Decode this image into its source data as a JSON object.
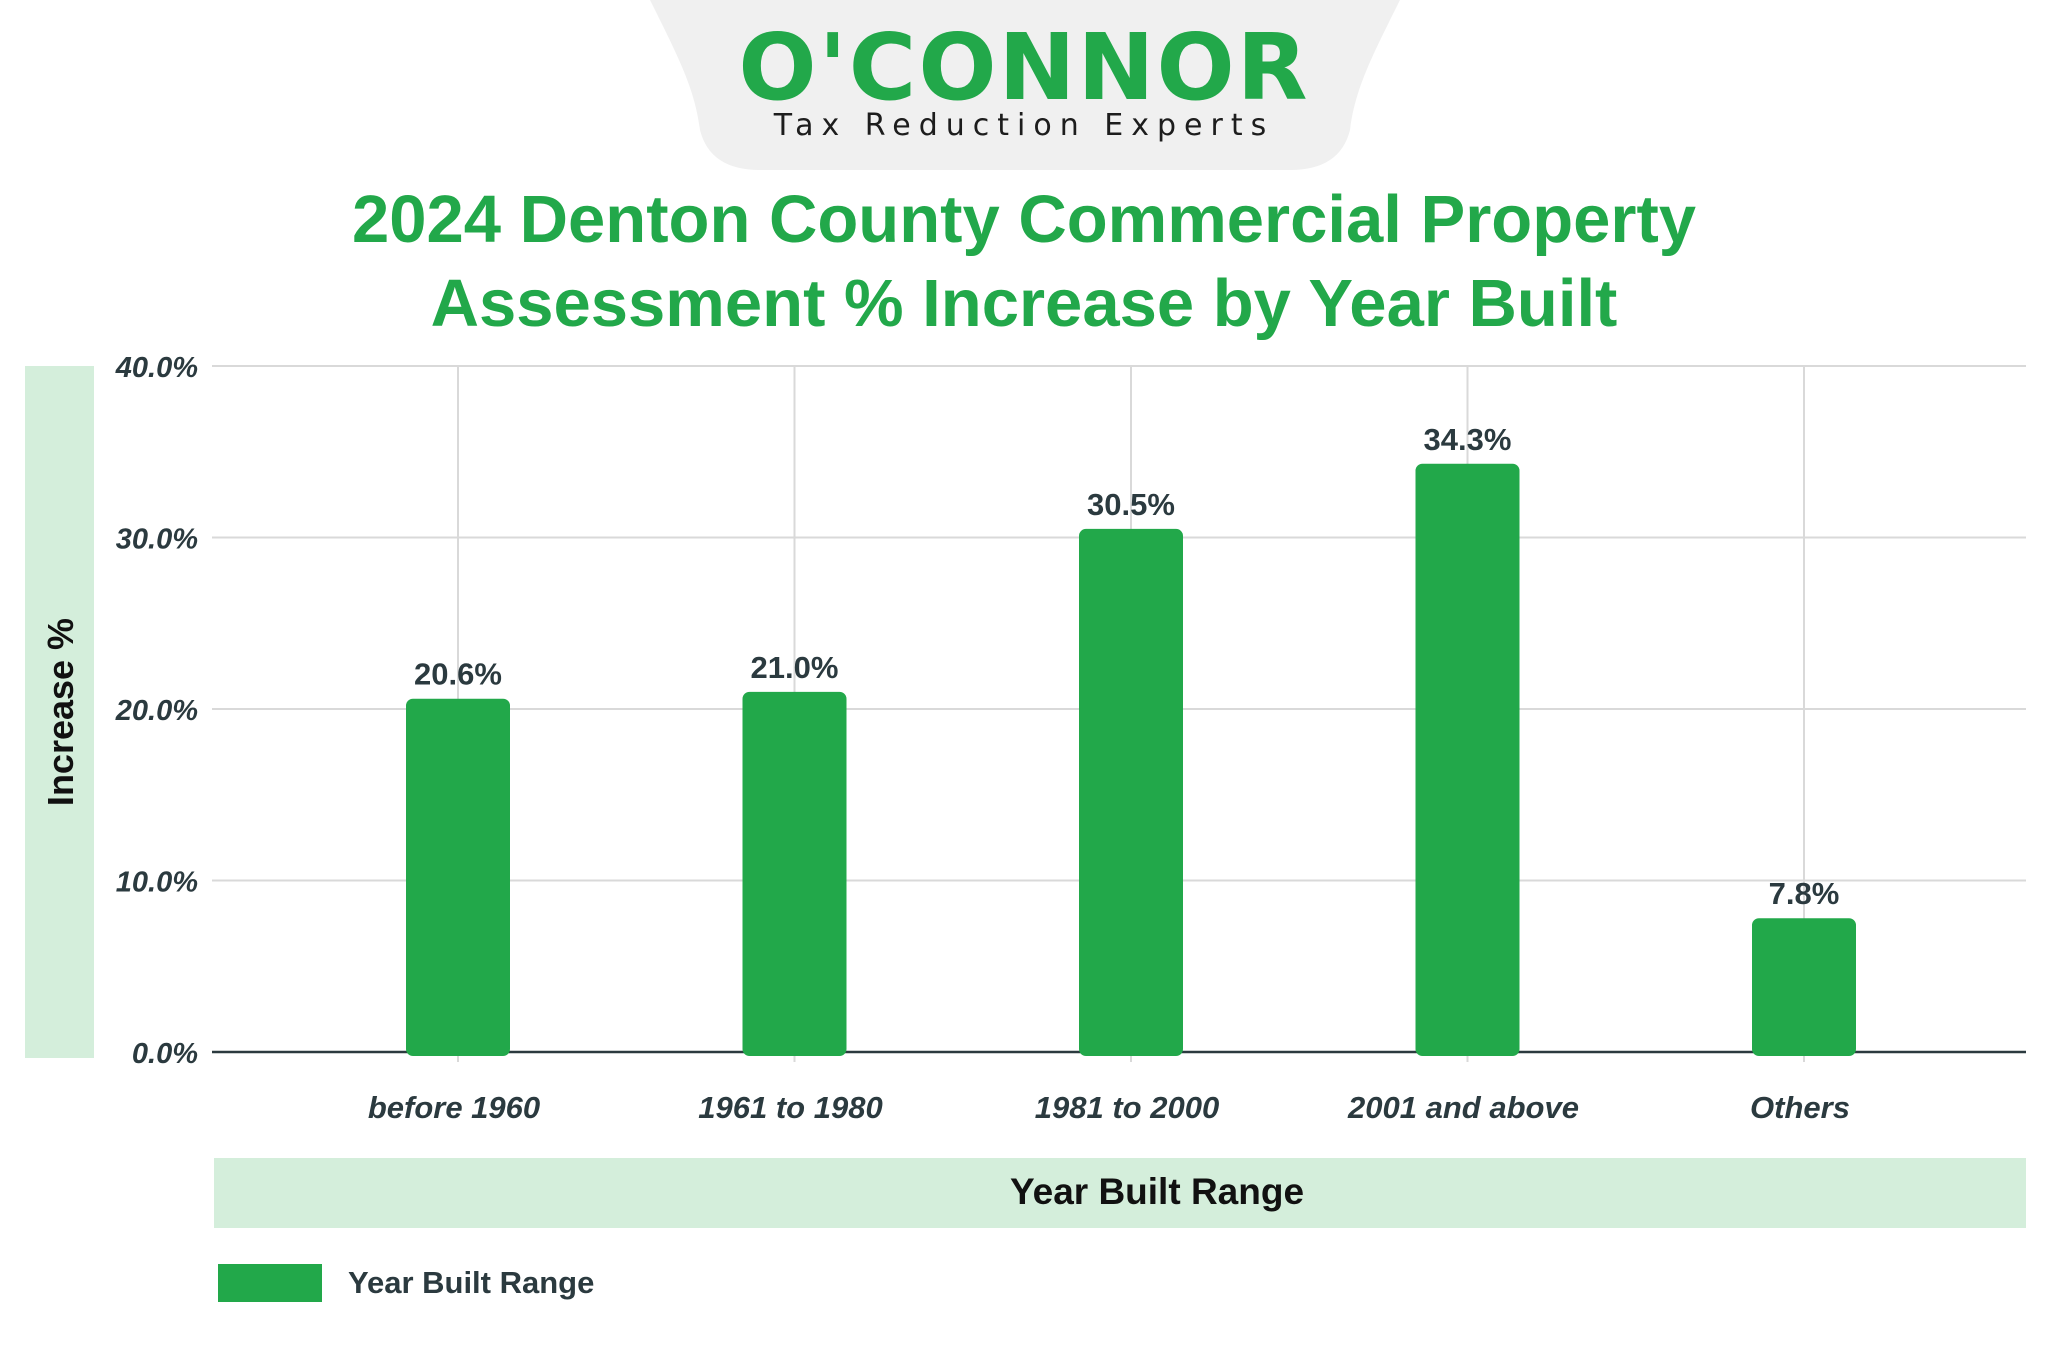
{
  "brand": {
    "logo_text": "O'CONNOR",
    "tagline": "Tax Reduction Experts"
  },
  "colors": {
    "accent": "#22a84a",
    "axis_band": "#d4eedb",
    "grid": "#d9d9d9",
    "text_dark": "#2b3a3f"
  },
  "chart_data": {
    "type": "bar",
    "title": "2024 Denton County Commercial Property Assessment % Increase by Year Built",
    "title_lines": [
      "2024 Denton County Commercial Property",
      "Assessment % Increase by Year Built"
    ],
    "xlabel": "Year Built Range",
    "ylabel": "Increase %",
    "categories": [
      "before 1960",
      "1961 to 1980",
      "1981 to 2000",
      "2001 and above",
      "Others"
    ],
    "series": [
      {
        "name": "Year Built Range",
        "values": [
          20.6,
          21.0,
          30.5,
          34.3,
          7.8
        ],
        "labels": [
          "20.6%",
          "21.0%",
          "30.5%",
          "34.3%",
          "7.8%"
        ]
      }
    ],
    "ylim": [
      0,
      40
    ],
    "yticks": [
      0,
      10,
      20,
      30,
      40
    ],
    "ytick_labels": [
      "0.0%",
      "10.0%",
      "20.0%",
      "30.0%",
      "40.0%"
    ],
    "grid": true,
    "legend": "bottom-left"
  }
}
